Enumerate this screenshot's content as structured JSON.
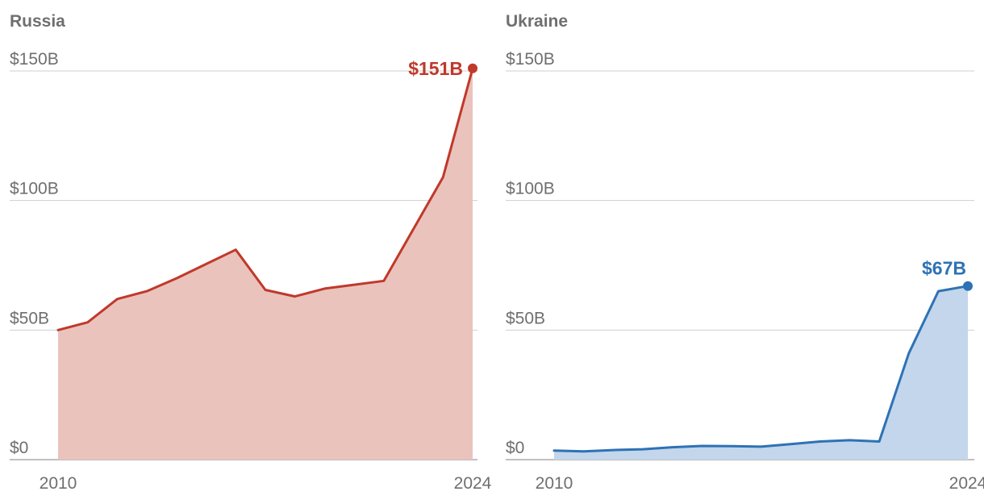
{
  "chart_data": [
    {
      "type": "area",
      "title": "Russia",
      "xlabel": "",
      "ylabel": "",
      "x_ticks": [
        "2010",
        "2024"
      ],
      "y_ticks": [
        "$0",
        "$50B",
        "$100B",
        "$150B"
      ],
      "xlim": [
        2010,
        2024
      ],
      "ylim": [
        0,
        150
      ],
      "grid": true,
      "color": "#c0392b",
      "fill_color": "#eac3bd",
      "x": [
        2010,
        2011,
        2012,
        2013,
        2014,
        2015,
        2016,
        2017,
        2018,
        2019,
        2020,
        2021,
        2022,
        2023,
        2024
      ],
      "values": [
        50,
        53,
        62,
        65,
        70,
        75.5,
        81,
        65.5,
        63,
        66,
        67.5,
        69,
        89,
        109,
        151
      ],
      "end_label": "$151B"
    },
    {
      "type": "area",
      "title": "Ukraine",
      "xlabel": "",
      "ylabel": "",
      "x_ticks": [
        "2010",
        "2024"
      ],
      "y_ticks": [
        "$0",
        "$50B",
        "$100B",
        "$150B"
      ],
      "xlim": [
        2010,
        2024
      ],
      "ylim": [
        0,
        150
      ],
      "grid": true,
      "color": "#2e72b5",
      "fill_color": "#c3d6eb",
      "x": [
        2010,
        2011,
        2012,
        2013,
        2014,
        2015,
        2016,
        2017,
        2018,
        2019,
        2020,
        2021,
        2022,
        2023,
        2024
      ],
      "values": [
        3.5,
        3.2,
        3.7,
        4,
        4.8,
        5.3,
        5.2,
        5,
        6,
        7,
        7.5,
        7,
        41,
        65,
        67
      ],
      "end_label": "$67B"
    }
  ]
}
